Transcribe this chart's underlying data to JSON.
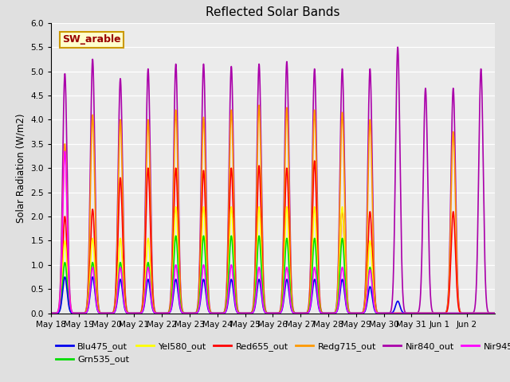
{
  "title": "Reflected Solar Bands",
  "ylabel": "Solar Radiation (W/m2)",
  "annotation": "SW_arable",
  "ylim": [
    0.0,
    6.0
  ],
  "yticks": [
    0.0,
    0.5,
    1.0,
    1.5,
    2.0,
    2.5,
    3.0,
    3.5,
    4.0,
    4.5,
    5.0,
    5.5,
    6.0
  ],
  "series": {
    "Blu475_out": {
      "color": "#0000ee",
      "lw": 1.2
    },
    "Grn535_out": {
      "color": "#00dd00",
      "lw": 1.2
    },
    "Yel580_out": {
      "color": "#ffff00",
      "lw": 1.2
    },
    "Red655_out": {
      "color": "#ff0000",
      "lw": 1.2
    },
    "Redg715_out": {
      "color": "#ff9900",
      "lw": 1.2
    },
    "Nir840_out": {
      "color": "#aa00aa",
      "lw": 1.2
    },
    "Nir945_out": {
      "color": "#ff00ff",
      "lw": 1.2
    }
  },
  "n_days": 16,
  "day_labels": [
    "May 18",
    "May 19",
    "May 20",
    "May 21",
    "May 22",
    "May 23",
    "May 24",
    "May 25",
    "May 26",
    "May 27",
    "May 28",
    "May 29",
    "May 30",
    "May 31",
    "Jun 1",
    "Jun 2"
  ],
  "peaks_blu": [
    0.75,
    0.75,
    0.7,
    0.7,
    0.7,
    0.7,
    0.7,
    0.7,
    0.7,
    0.7,
    0.7,
    0.55,
    0.25,
    0.0,
    0.0,
    0.0
  ],
  "peaks_grn": [
    1.05,
    1.05,
    1.05,
    1.05,
    1.6,
    1.6,
    1.6,
    1.6,
    1.55,
    1.55,
    1.55,
    0.95,
    0.0,
    0.0,
    0.0,
    0.0
  ],
  "peaks_yel": [
    1.5,
    1.55,
    1.55,
    1.55,
    2.2,
    2.2,
    2.2,
    2.2,
    2.2,
    2.2,
    2.2,
    1.5,
    0.0,
    0.0,
    0.0,
    0.0
  ],
  "peaks_red": [
    2.0,
    2.15,
    2.8,
    3.0,
    3.0,
    2.95,
    3.0,
    3.05,
    3.0,
    3.15,
    2.15,
    2.1,
    0.0,
    0.0,
    2.1,
    0.0
  ],
  "peaks_redg": [
    3.5,
    4.1,
    4.0,
    4.0,
    4.2,
    4.05,
    4.2,
    4.3,
    4.25,
    4.2,
    4.15,
    4.0,
    0.0,
    0.0,
    3.75,
    0.0
  ],
  "peaks_nir840": [
    4.95,
    5.25,
    4.85,
    5.05,
    5.15,
    5.15,
    5.1,
    5.15,
    5.2,
    5.05,
    5.05,
    5.05,
    5.5,
    4.65,
    4.65,
    5.05
  ],
  "peaks_nir945": [
    3.35,
    0.95,
    0.95,
    0.95,
    1.0,
    1.0,
    1.0,
    0.95,
    0.95,
    0.95,
    0.95,
    0.9,
    0.0,
    0.0,
    0.0,
    0.0
  ],
  "background_color": "#e0e0e0",
  "plot_bg_color": "#ebebeb"
}
